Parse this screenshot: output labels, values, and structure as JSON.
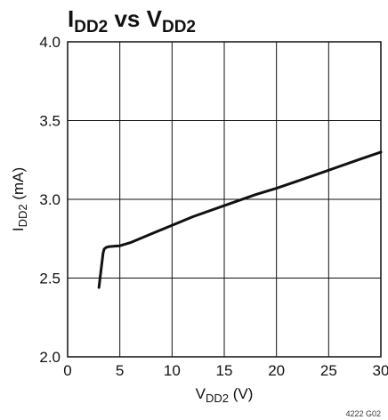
{
  "chart_data": {
    "type": "line",
    "title": {
      "main": "I",
      "sub": "DD2",
      "mid": " vs V",
      "sub2": "DD2"
    },
    "xlabel": {
      "main": "V",
      "sub": "DD2",
      "rest": " (V)"
    },
    "ylabel": {
      "main": "I",
      "sub": "DD2",
      "rest": " (mA)"
    },
    "xlim": [
      0,
      30
    ],
    "ylim": [
      2.0,
      4.0
    ],
    "xticks": [
      0,
      5,
      10,
      15,
      20,
      25,
      30
    ],
    "yticks": [
      2.0,
      2.5,
      3.0,
      3.5,
      4.0
    ],
    "xtick_labels": [
      "0",
      "5",
      "10",
      "15",
      "20",
      "25",
      "30"
    ],
    "ytick_labels": [
      "2.0",
      "2.5",
      "3.0",
      "3.5",
      "4.0"
    ],
    "grid": true,
    "series": [
      {
        "x": [
          3.0,
          3.2,
          3.4,
          3.5,
          3.7,
          4.0,
          5.0,
          6.0,
          8.0,
          10.0,
          12.0,
          15.0,
          18.0,
          20.0,
          22.0,
          25.0,
          28.0,
          30.0
        ],
        "y": [
          2.44,
          2.55,
          2.66,
          2.685,
          2.695,
          2.7,
          2.705,
          2.725,
          2.78,
          2.835,
          2.89,
          2.96,
          3.03,
          3.07,
          3.115,
          3.185,
          3.255,
          3.3
        ],
        "color": "#111111"
      }
    ],
    "figure_code": "4222 G02"
  }
}
